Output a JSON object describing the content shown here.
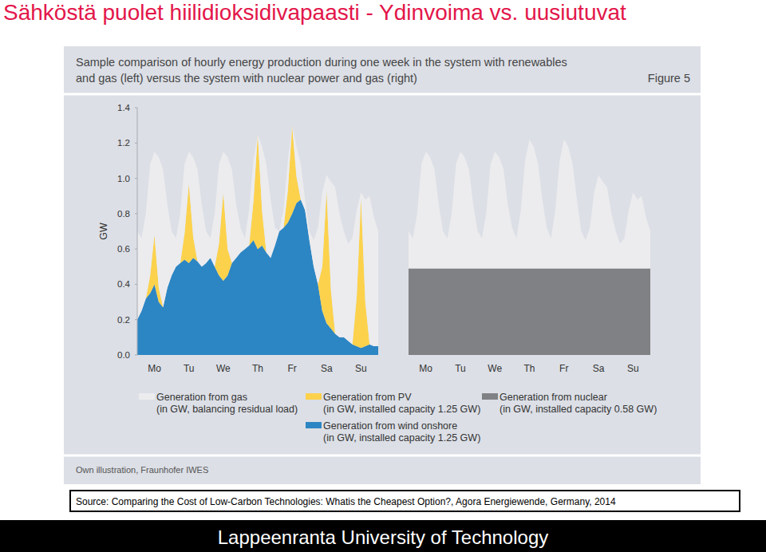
{
  "page": {
    "heading": "Sähköstä puolet hiilidioksidivapaasti - Ydinvoima vs. uusiutuvat",
    "figure_title": [
      "Sample comparison of hourly energy production during one week in the system with renewables",
      "and gas (left) versus the system with nuclear power and gas (right)"
    ],
    "figure_label": "Figure 5",
    "credit": "Own illustration, Fraunhofer IWES",
    "source": "Source: Comparing the Cost of Low-Carbon Technologies: Whatis the Cheapest Option?, Agora Energiewende, Germany, 2014",
    "footer": "Lappeenranta University of Technology"
  },
  "chart_data": [
    {
      "type": "area",
      "stacked": true,
      "ylabel": "GW",
      "x": [
        0,
        3,
        6,
        9,
        12,
        15,
        18,
        21,
        24,
        27,
        30,
        33,
        36,
        39,
        42,
        45,
        48,
        51,
        54,
        57,
        60,
        63,
        66,
        69,
        72,
        75,
        78,
        81,
        84,
        87,
        90,
        93,
        96,
        99,
        102,
        105,
        108,
        111,
        114,
        117,
        120,
        123,
        126,
        129,
        132,
        135,
        138,
        141,
        144,
        147,
        150,
        153,
        156,
        159,
        162,
        165,
        168
      ],
      "xlim": [
        0,
        168
      ],
      "xticks": [
        {
          "value": 12,
          "label": "Mo"
        },
        {
          "value": 36,
          "label": "Tu"
        },
        {
          "value": 60,
          "label": "We"
        },
        {
          "value": 84,
          "label": "Th"
        },
        {
          "value": 108,
          "label": "Fr"
        },
        {
          "value": 132,
          "label": "Sa"
        },
        {
          "value": 156,
          "label": "Su"
        }
      ],
      "ylim": [
        0,
        1.4
      ],
      "yticks": [
        {
          "value": 0,
          "label": "0.0"
        },
        0.2,
        0.4,
        0.6,
        0.8,
        {
          "value": 1,
          "label": "1.0"
        },
        1.2,
        1.4
      ],
      "series": [
        {
          "name": "Generation from wind onshore (in GW, installed capacity 1.25 GW)",
          "color": "#2d86c4",
          "values": [
            0.2,
            0.25,
            0.32,
            0.35,
            0.4,
            0.3,
            0.27,
            0.38,
            0.45,
            0.5,
            0.52,
            0.54,
            0.52,
            0.55,
            0.53,
            0.5,
            0.52,
            0.55,
            0.5,
            0.45,
            0.42,
            0.45,
            0.52,
            0.55,
            0.58,
            0.6,
            0.62,
            0.65,
            0.6,
            0.62,
            0.58,
            0.55,
            0.62,
            0.7,
            0.72,
            0.75,
            0.8,
            0.86,
            0.88,
            0.82,
            0.65,
            0.5,
            0.4,
            0.25,
            0.18,
            0.15,
            0.12,
            0.1,
            0.1,
            0.08,
            0.06,
            0.05,
            0.04,
            0.05,
            0.06,
            0.05,
            0.05
          ]
        },
        {
          "name": "Generation from PV (in GW, installed capacity 1.25 GW)",
          "color": "#fcd24c",
          "values": [
            0,
            0,
            0,
            0.1,
            0.28,
            0.08,
            0,
            0,
            0,
            0,
            0,
            0.15,
            0.45,
            0.12,
            0,
            0,
            0,
            0,
            0,
            0.18,
            0.5,
            0.15,
            0,
            0,
            0,
            0,
            0,
            0.22,
            0.65,
            0.2,
            0,
            0,
            0,
            0,
            0,
            0.18,
            0.5,
            0.15,
            0,
            0,
            0,
            0,
            0,
            0.25,
            0.75,
            0.22,
            0,
            0,
            0,
            0,
            0,
            0.28,
            0.85,
            0.25,
            0,
            0,
            0
          ]
        },
        {
          "name": "Generation from gas (in GW, balancing residual load)",
          "color": "#ececee",
          "values": [
            0.5,
            0.41,
            0.48,
            0.63,
            0.47,
            0.74,
            0.78,
            0.47,
            0.25,
            0.16,
            0.28,
            0.39,
            0.18,
            0.45,
            0.52,
            0.35,
            0.18,
            0.11,
            0.3,
            0.45,
            0.23,
            0.52,
            0.53,
            0.3,
            0.14,
            0.06,
            0.2,
            0.23,
            0,
            0.36,
            0.5,
            0.33,
            0.1,
            0,
            0.1,
            0.17,
            0,
            0.17,
            0.2,
            0.06,
            0.05,
            0.15,
            0.32,
            0.42,
            0.09,
            0.61,
            0.83,
            0.7,
            0.6,
            0.55,
            0.6,
            0.49,
            0.03,
            0.58,
            0.84,
            0.73,
            0.65
          ]
        }
      ]
    },
    {
      "type": "area",
      "stacked": true,
      "tick_labels": "x",
      "x": [
        0,
        3,
        6,
        9,
        12,
        15,
        18,
        21,
        24,
        27,
        30,
        33,
        36,
        39,
        42,
        45,
        48,
        51,
        54,
        57,
        60,
        63,
        66,
        69,
        72,
        75,
        78,
        81,
        84,
        87,
        90,
        93,
        96,
        99,
        102,
        105,
        108,
        111,
        114,
        117,
        120,
        123,
        126,
        129,
        132,
        135,
        138,
        141,
        144,
        147,
        150,
        153,
        156,
        159,
        162,
        165,
        168
      ],
      "xlim": [
        0,
        168
      ],
      "xticks": [
        {
          "value": 12,
          "label": "Mo"
        },
        {
          "value": 36,
          "label": "Tu"
        },
        {
          "value": 60,
          "label": "We"
        },
        {
          "value": 84,
          "label": "Th"
        },
        {
          "value": 108,
          "label": "Fr"
        },
        {
          "value": 132,
          "label": "Sa"
        },
        {
          "value": 156,
          "label": "Su"
        }
      ],
      "ylim": [
        0,
        1.4
      ],
      "series": [
        {
          "name": "Generation from nuclear (in GW, installed capacity 0.58 GW)",
          "color": "#808184",
          "values": [
            0.49,
            0.49,
            0.49,
            0.49,
            0.49,
            0.49,
            0.49,
            0.49,
            0.49,
            0.49,
            0.49,
            0.49,
            0.49,
            0.49,
            0.49,
            0.49,
            0.49,
            0.49,
            0.49,
            0.49,
            0.49,
            0.49,
            0.49,
            0.49,
            0.49,
            0.49,
            0.49,
            0.49,
            0.49,
            0.49,
            0.49,
            0.49,
            0.49,
            0.49,
            0.49,
            0.49,
            0.49,
            0.49,
            0.49,
            0.49,
            0.49,
            0.49,
            0.49,
            0.49,
            0.49,
            0.49,
            0.49,
            0.49,
            0.49,
            0.49,
            0.49,
            0.49,
            0.49,
            0.49,
            0.49,
            0.49,
            0.49
          ]
        },
        {
          "name": "Generation from gas (in GW, balancing residual load)",
          "color": "#ececee",
          "values": [
            0.21,
            0.17,
            0.31,
            0.59,
            0.66,
            0.63,
            0.56,
            0.36,
            0.21,
            0.17,
            0.31,
            0.59,
            0.66,
            0.63,
            0.56,
            0.36,
            0.21,
            0.17,
            0.31,
            0.59,
            0.66,
            0.63,
            0.56,
            0.36,
            0.23,
            0.17,
            0.33,
            0.61,
            0.73,
            0.69,
            0.59,
            0.39,
            0.23,
            0.17,
            0.33,
            0.61,
            0.73,
            0.69,
            0.59,
            0.39,
            0.21,
            0.16,
            0.23,
            0.43,
            0.53,
            0.49,
            0.46,
            0.31,
            0.21,
            0.14,
            0.17,
            0.33,
            0.43,
            0.39,
            0.41,
            0.29,
            0.21
          ]
        }
      ]
    }
  ]
}
